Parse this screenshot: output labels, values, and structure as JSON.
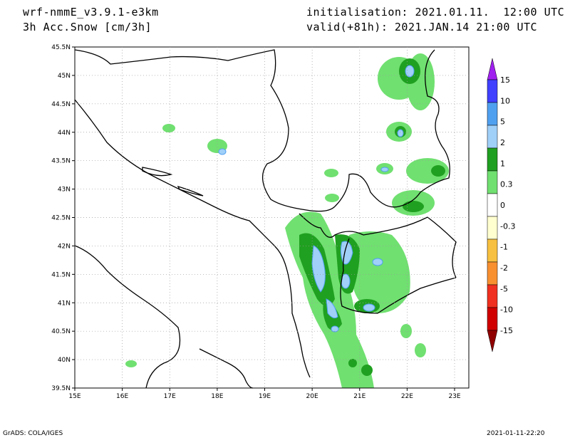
{
  "header": {
    "model": "wrf-nmmE_v3.9.1-e3km",
    "field": "3h Acc.Snow [cm/3h]",
    "init": "initialisation: 2021.01.11.  12:00 UTC",
    "valid": "valid(+81h): 2021.JAN.14 21:00 UTC"
  },
  "map": {
    "lat_labels": [
      "45.5N",
      "45N",
      "44.5N",
      "44N",
      "43.5N",
      "43N",
      "42.5N",
      "42N",
      "41.5N",
      "41N",
      "40.5N",
      "40N",
      "39.5N"
    ],
    "lon_labels": [
      "15E",
      "16E",
      "17E",
      "18E",
      "19E",
      "20E",
      "21E",
      "22E",
      "23E"
    ],
    "lat_range": [
      39.5,
      45.5
    ],
    "lon_range": [
      15,
      23.3
    ],
    "grid": "dotted"
  },
  "legend": {
    "labels": [
      "15",
      "10",
      "5",
      "2",
      "1",
      "0.3",
      "0",
      "-0.3",
      "-1",
      "-2",
      "-5",
      "-10",
      "-15"
    ],
    "colors": [
      "#a020f0",
      "#4040ff",
      "#50a0f0",
      "#a0d0f8",
      "#20a020",
      "#70e070",
      "#ffffff",
      "#ffffd0",
      "#f8c040",
      "#f89030",
      "#f03020",
      "#d00000",
      "#900000"
    ]
  },
  "footer": {
    "left": "GrADS: COLA/IGES",
    "right": "2021-01-11-22:20"
  }
}
